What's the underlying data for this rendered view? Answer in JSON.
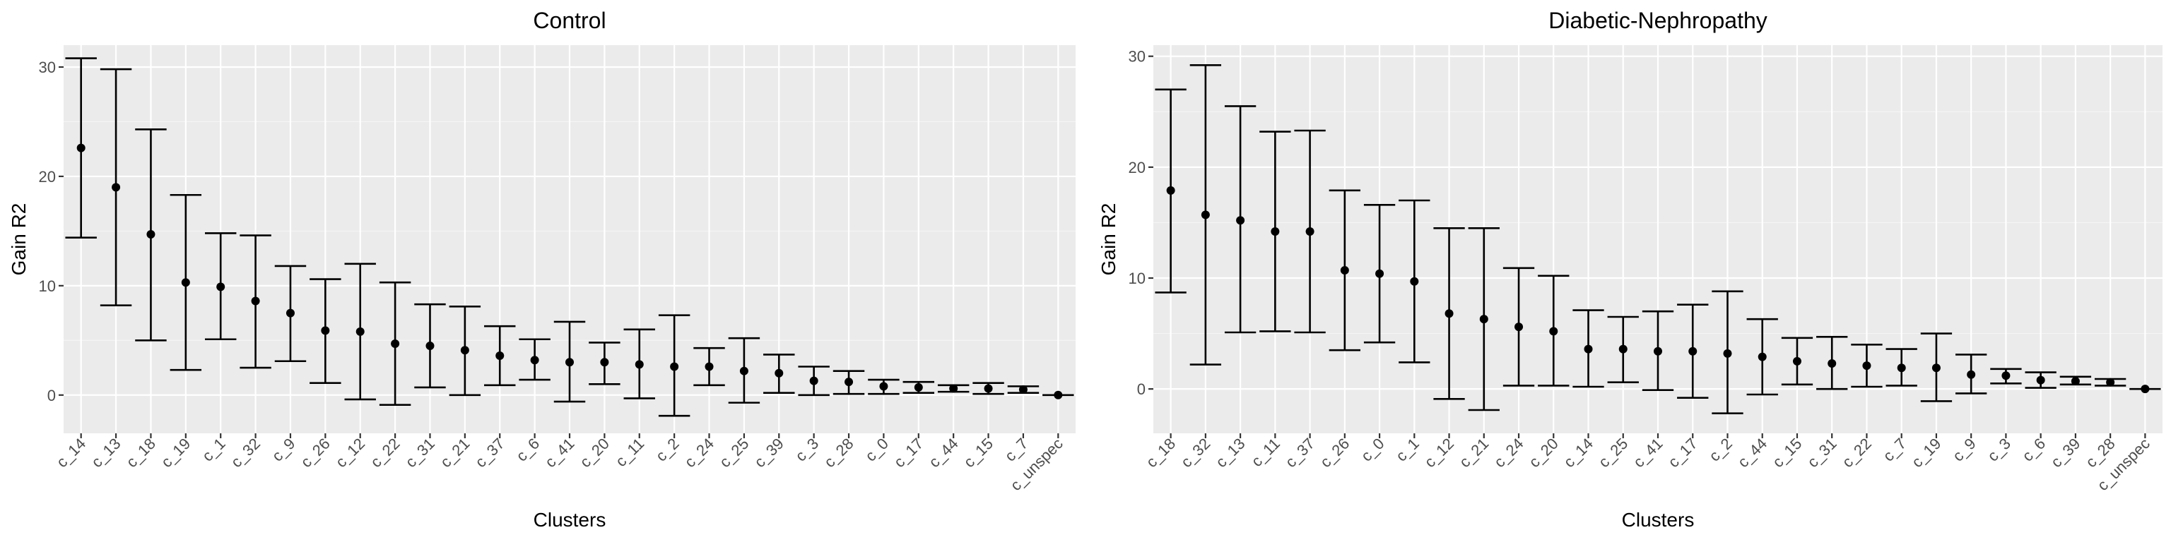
{
  "chart_data": [
    {
      "type": "scatter",
      "title": "Control",
      "xlabel": "Clusters",
      "ylabel": "Gain R2",
      "ylim": [
        -3.5,
        32.0
      ],
      "yticks": [
        0,
        10,
        20,
        30
      ],
      "grid": true,
      "error_bars": true,
      "categories": [
        "c_14",
        "c_13",
        "c_18",
        "c_19",
        "c_1",
        "c_32",
        "c_9",
        "c_26",
        "c_12",
        "c_22",
        "c_31",
        "c_21",
        "c_37",
        "c_6",
        "c_41",
        "c_20",
        "c_11",
        "c_2",
        "c_24",
        "c_25",
        "c_39",
        "c_3",
        "c_28",
        "c_0",
        "c_17",
        "c_44",
        "c_15",
        "c_7",
        "c_unspec"
      ],
      "values": [
        22.6,
        19.0,
        14.7,
        10.3,
        9.9,
        8.6,
        7.5,
        5.9,
        5.8,
        4.7,
        4.5,
        4.1,
        3.6,
        3.2,
        3.0,
        3.0,
        2.8,
        2.6,
        2.6,
        2.2,
        2.0,
        1.3,
        1.2,
        0.8,
        0.7,
        0.6,
        0.6,
        0.5,
        0.0
      ],
      "lower": [
        14.4,
        8.2,
        5.0,
        2.3,
        5.1,
        2.5,
        3.1,
        1.1,
        -0.4,
        -0.9,
        0.7,
        0.0,
        0.9,
        1.4,
        -0.6,
        1.0,
        -0.3,
        -1.9,
        0.9,
        -0.7,
        0.2,
        0.0,
        0.1,
        0.1,
        0.2,
        0.3,
        0.1,
        0.2,
        0.0
      ],
      "upper": [
        30.8,
        29.8,
        24.3,
        18.3,
        14.8,
        14.6,
        11.8,
        10.6,
        12.0,
        10.3,
        8.3,
        8.1,
        6.3,
        5.1,
        6.7,
        4.8,
        6.0,
        7.3,
        4.3,
        5.2,
        3.7,
        2.6,
        2.2,
        1.4,
        1.2,
        0.9,
        1.1,
        0.8,
        0.0
      ]
    },
    {
      "type": "scatter",
      "title": "Diabetic-Nephropathy",
      "xlabel": "Clusters",
      "ylabel": "Gain R2",
      "ylim": [
        -4.0,
        31.0
      ],
      "yticks": [
        0,
        10,
        20,
        30
      ],
      "grid": true,
      "error_bars": true,
      "categories": [
        "c_18",
        "c_32",
        "c_13",
        "c_11",
        "c_37",
        "c_26",
        "c_0",
        "c_1",
        "c_12",
        "c_21",
        "c_24",
        "c_20",
        "c_14",
        "c_25",
        "c_41",
        "c_17",
        "c_2",
        "c_44",
        "c_15",
        "c_31",
        "c_22",
        "c_7",
        "c_19",
        "c_9",
        "c_3",
        "c_6",
        "c_39",
        "c_28",
        "c_unspec"
      ],
      "values": [
        17.9,
        15.7,
        15.2,
        14.2,
        14.2,
        10.7,
        10.4,
        9.7,
        6.8,
        6.3,
        5.6,
        5.2,
        3.6,
        3.6,
        3.4,
        3.4,
        3.2,
        2.9,
        2.5,
        2.3,
        2.1,
        1.9,
        1.9,
        1.3,
        1.2,
        0.8,
        0.7,
        0.6,
        0.0
      ],
      "lower": [
        8.7,
        2.2,
        5.1,
        5.2,
        5.1,
        3.5,
        4.2,
        2.4,
        -0.9,
        -1.9,
        0.3,
        0.3,
        0.2,
        0.6,
        -0.1,
        -0.8,
        -2.2,
        -0.5,
        0.4,
        0.0,
        0.2,
        0.3,
        -1.1,
        -0.4,
        0.5,
        0.1,
        0.4,
        0.3,
        0.0
      ],
      "upper": [
        27.0,
        29.2,
        25.5,
        23.2,
        23.3,
        17.9,
        16.6,
        17.0,
        14.5,
        14.5,
        10.9,
        10.2,
        7.1,
        6.5,
        7.0,
        7.6,
        8.8,
        6.3,
        4.6,
        4.7,
        4.0,
        3.6,
        5.0,
        3.1,
        1.8,
        1.5,
        1.1,
        0.9,
        0.0
      ]
    }
  ]
}
